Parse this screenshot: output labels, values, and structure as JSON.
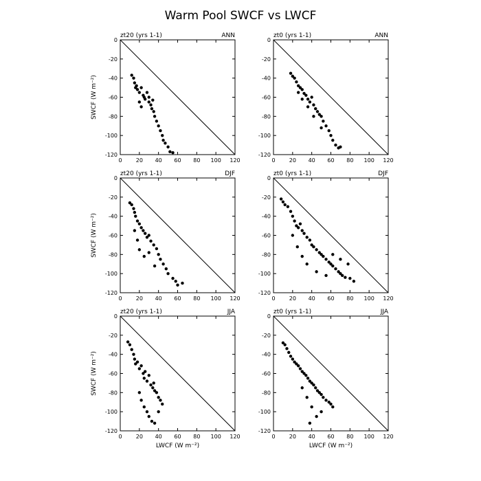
{
  "title": "Warm Pool SWCF vs LWCF",
  "xlabel": "LWCF (W m⁻²)",
  "ylabel": "SWCF (W m⁻²)",
  "chart_data": [
    {
      "type": "scatter",
      "left_label": "zt20 (yrs 1-1)",
      "season": "ANN",
      "xlim": [
        0,
        120
      ],
      "ylim": [
        -120,
        0
      ],
      "xticks": [
        0,
        20,
        40,
        60,
        80,
        100,
        120
      ],
      "yticks": [
        0,
        -20,
        -40,
        -60,
        -80,
        -100,
        -120
      ],
      "reference_line": [
        [
          0,
          0
        ],
        [
          120,
          -120
        ]
      ],
      "points": [
        [
          12,
          -37
        ],
        [
          14,
          -40
        ],
        [
          15,
          -45
        ],
        [
          16,
          -50
        ],
        [
          17,
          -48
        ],
        [
          18,
          -52
        ],
        [
          20,
          -55
        ],
        [
          22,
          -50
        ],
        [
          24,
          -58
        ],
        [
          25,
          -60
        ],
        [
          26,
          -62
        ],
        [
          28,
          -55
        ],
        [
          30,
          -65
        ],
        [
          32,
          -68
        ],
        [
          33,
          -72
        ],
        [
          35,
          -75
        ],
        [
          36,
          -80
        ],
        [
          38,
          -85
        ],
        [
          40,
          -90
        ],
        [
          42,
          -95
        ],
        [
          44,
          -100
        ],
        [
          45,
          -105
        ],
        [
          47,
          -108
        ],
        [
          50,
          -112
        ],
        [
          52,
          -117
        ],
        [
          55,
          -118
        ],
        [
          20,
          -65
        ],
        [
          22,
          -70
        ],
        [
          30,
          -60
        ],
        [
          34,
          -63
        ]
      ]
    },
    {
      "type": "scatter",
      "left_label": "zt0 (yrs 1-1)",
      "season": "ANN",
      "xlim": [
        0,
        120
      ],
      "ylim": [
        -120,
        0
      ],
      "xticks": [
        0,
        20,
        40,
        60,
        80,
        100,
        120
      ],
      "yticks": [
        0,
        -20,
        -40,
        -60,
        -80,
        -100,
        -120
      ],
      "reference_line": [
        [
          0,
          0
        ],
        [
          120,
          -120
        ]
      ],
      "points": [
        [
          18,
          -35
        ],
        [
          20,
          -38
        ],
        [
          22,
          -40
        ],
        [
          24,
          -44
        ],
        [
          26,
          -48
        ],
        [
          28,
          -50
        ],
        [
          30,
          -52
        ],
        [
          32,
          -56
        ],
        [
          34,
          -58
        ],
        [
          36,
          -62
        ],
        [
          38,
          -65
        ],
        [
          40,
          -60
        ],
        [
          42,
          -68
        ],
        [
          44,
          -72
        ],
        [
          46,
          -75
        ],
        [
          48,
          -78
        ],
        [
          50,
          -80
        ],
        [
          52,
          -85
        ],
        [
          55,
          -90
        ],
        [
          58,
          -95
        ],
        [
          60,
          -100
        ],
        [
          62,
          -105
        ],
        [
          65,
          -110
        ],
        [
          68,
          -113
        ],
        [
          70,
          -112
        ],
        [
          26,
          -55
        ],
        [
          30,
          -62
        ],
        [
          36,
          -70
        ],
        [
          42,
          -80
        ],
        [
          50,
          -92
        ]
      ]
    },
    {
      "type": "scatter",
      "left_label": "zt20 (yrs 1-1)",
      "season": "DJF",
      "xlim": [
        0,
        120
      ],
      "ylim": [
        -120,
        0
      ],
      "xticks": [
        0,
        20,
        40,
        60,
        80,
        100,
        120
      ],
      "yticks": [
        0,
        -20,
        -40,
        -60,
        -80,
        -100,
        -120
      ],
      "reference_line": [
        [
          0,
          0
        ],
        [
          120,
          -120
        ]
      ],
      "points": [
        [
          10,
          -26
        ],
        [
          12,
          -28
        ],
        [
          14,
          -32
        ],
        [
          15,
          -36
        ],
        [
          16,
          -40
        ],
        [
          18,
          -45
        ],
        [
          20,
          -48
        ],
        [
          22,
          -52
        ],
        [
          24,
          -55
        ],
        [
          26,
          -58
        ],
        [
          28,
          -62
        ],
        [
          30,
          -60
        ],
        [
          32,
          -66
        ],
        [
          35,
          -70
        ],
        [
          38,
          -74
        ],
        [
          40,
          -80
        ],
        [
          42,
          -85
        ],
        [
          45,
          -90
        ],
        [
          48,
          -95
        ],
        [
          50,
          -100
        ],
        [
          55,
          -105
        ],
        [
          58,
          -108
        ],
        [
          60,
          -112
        ],
        [
          65,
          -110
        ],
        [
          15,
          -55
        ],
        [
          18,
          -65
        ],
        [
          20,
          -75
        ],
        [
          25,
          -82
        ],
        [
          30,
          -78
        ],
        [
          36,
          -92
        ]
      ]
    },
    {
      "type": "scatter",
      "left_label": "zt0 (yrs 1-1)",
      "season": "DJF",
      "xlim": [
        0,
        120
      ],
      "ylim": [
        -120,
        0
      ],
      "xticks": [
        0,
        20,
        40,
        60,
        80,
        100,
        120
      ],
      "yticks": [
        0,
        -20,
        -40,
        -60,
        -80,
        -100,
        -120
      ],
      "reference_line": [
        [
          0,
          0
        ],
        [
          120,
          -120
        ]
      ],
      "points": [
        [
          8,
          -22
        ],
        [
          10,
          -25
        ],
        [
          12,
          -28
        ],
        [
          15,
          -30
        ],
        [
          18,
          -35
        ],
        [
          20,
          -40
        ],
        [
          22,
          -45
        ],
        [
          24,
          -50
        ],
        [
          26,
          -52
        ],
        [
          28,
          -48
        ],
        [
          30,
          -55
        ],
        [
          32,
          -58
        ],
        [
          35,
          -62
        ],
        [
          38,
          -65
        ],
        [
          40,
          -70
        ],
        [
          42,
          -72
        ],
        [
          45,
          -75
        ],
        [
          48,
          -78
        ],
        [
          50,
          -80
        ],
        [
          52,
          -82
        ],
        [
          55,
          -85
        ],
        [
          58,
          -88
        ],
        [
          60,
          -90
        ],
        [
          62,
          -92
        ],
        [
          65,
          -95
        ],
        [
          68,
          -98
        ],
        [
          70,
          -100
        ],
        [
          72,
          -102
        ],
        [
          75,
          -104
        ],
        [
          80,
          -105
        ],
        [
          84,
          -108
        ],
        [
          20,
          -60
        ],
        [
          25,
          -72
        ],
        [
          30,
          -82
        ],
        [
          35,
          -90
        ],
        [
          45,
          -98
        ],
        [
          55,
          -102
        ],
        [
          62,
          -80
        ],
        [
          70,
          -85
        ],
        [
          78,
          -90
        ]
      ]
    },
    {
      "type": "scatter",
      "left_label": "zt20 (yrs 1-1)",
      "season": "JJA",
      "xlim": [
        0,
        120
      ],
      "ylim": [
        -120,
        0
      ],
      "xticks": [
        0,
        20,
        40,
        60,
        80,
        100,
        120
      ],
      "yticks": [
        0,
        -20,
        -40,
        -60,
        -80,
        -100,
        -120
      ],
      "reference_line": [
        [
          0,
          0
        ],
        [
          120,
          -120
        ]
      ],
      "points": [
        [
          8,
          -27
        ],
        [
          10,
          -30
        ],
        [
          12,
          -35
        ],
        [
          14,
          -40
        ],
        [
          15,
          -45
        ],
        [
          16,
          -50
        ],
        [
          18,
          -48
        ],
        [
          20,
          -55
        ],
        [
          22,
          -52
        ],
        [
          24,
          -60
        ],
        [
          25,
          -65
        ],
        [
          26,
          -58
        ],
        [
          28,
          -68
        ],
        [
          30,
          -62
        ],
        [
          32,
          -72
        ],
        [
          34,
          -75
        ],
        [
          35,
          -70
        ],
        [
          36,
          -78
        ],
        [
          38,
          -80
        ],
        [
          40,
          -85
        ],
        [
          42,
          -88
        ],
        [
          44,
          -92
        ],
        [
          20,
          -80
        ],
        [
          22,
          -88
        ],
        [
          25,
          -95
        ],
        [
          28,
          -100
        ],
        [
          30,
          -105
        ],
        [
          33,
          -110
        ],
        [
          36,
          -112
        ],
        [
          40,
          -100
        ]
      ]
    },
    {
      "type": "scatter",
      "left_label": "zt0 (yrs 1-1)",
      "season": "JJA",
      "xlim": [
        0,
        120
      ],
      "ylim": [
        -120,
        0
      ],
      "xticks": [
        0,
        20,
        40,
        60,
        80,
        100,
        120
      ],
      "yticks": [
        0,
        -20,
        -40,
        -60,
        -80,
        -100,
        -120
      ],
      "reference_line": [
        [
          0,
          0
        ],
        [
          120,
          -120
        ]
      ],
      "points": [
        [
          10,
          -28
        ],
        [
          12,
          -30
        ],
        [
          14,
          -34
        ],
        [
          16,
          -38
        ],
        [
          18,
          -42
        ],
        [
          20,
          -45
        ],
        [
          22,
          -48
        ],
        [
          24,
          -50
        ],
        [
          26,
          -52
        ],
        [
          28,
          -55
        ],
        [
          30,
          -58
        ],
        [
          32,
          -60
        ],
        [
          34,
          -62
        ],
        [
          36,
          -65
        ],
        [
          38,
          -68
        ],
        [
          40,
          -70
        ],
        [
          42,
          -72
        ],
        [
          44,
          -75
        ],
        [
          46,
          -78
        ],
        [
          48,
          -80
        ],
        [
          50,
          -82
        ],
        [
          52,
          -85
        ],
        [
          55,
          -88
        ],
        [
          58,
          -90
        ],
        [
          60,
          -92
        ],
        [
          62,
          -95
        ],
        [
          30,
          -75
        ],
        [
          35,
          -85
        ],
        [
          40,
          -95
        ],
        [
          45,
          -105
        ],
        [
          50,
          -100
        ],
        [
          38,
          -112
        ]
      ]
    }
  ]
}
